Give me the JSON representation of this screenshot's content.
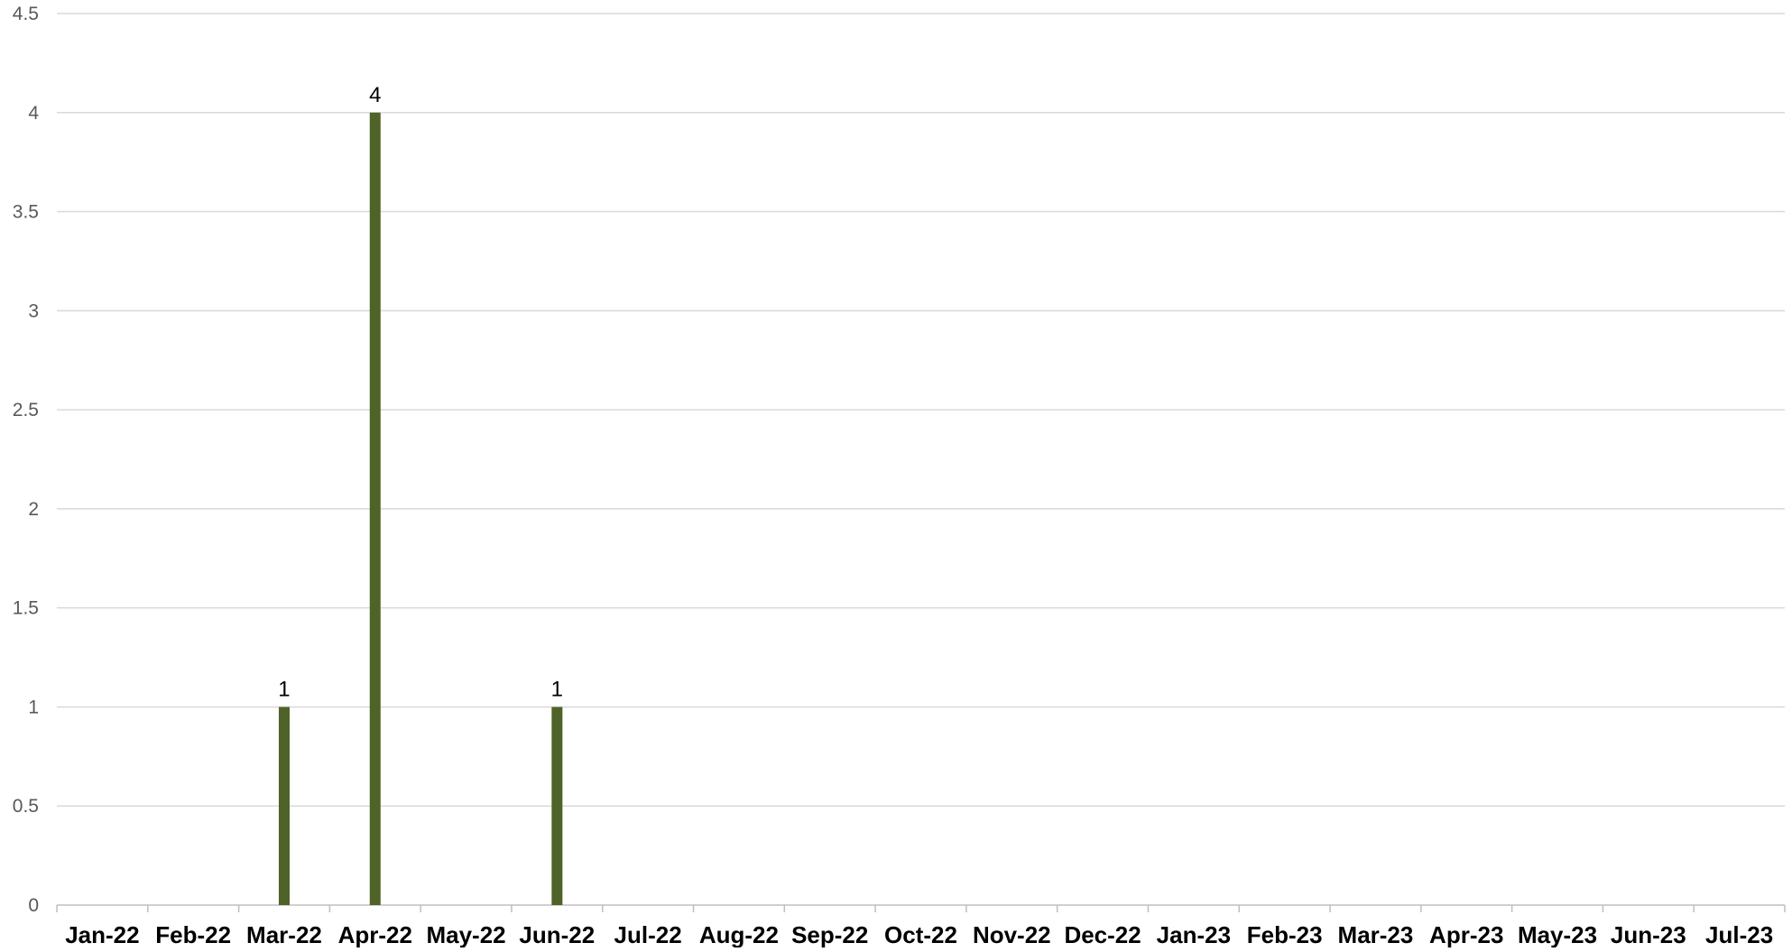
{
  "chart_data": {
    "type": "bar",
    "categories": [
      "Jan-22",
      "Feb-22",
      "Mar-22",
      "Apr-22",
      "May-22",
      "Jun-22",
      "Jul-22",
      "Aug-22",
      "Sep-22",
      "Oct-22",
      "Nov-22",
      "Dec-22",
      "Jan-23",
      "Feb-23",
      "Mar-23",
      "Apr-23",
      "May-23",
      "Jun-23",
      "Jul-23"
    ],
    "values": [
      0,
      0,
      1,
      4,
      0,
      1,
      0,
      0,
      0,
      0,
      0,
      0,
      0,
      0,
      0,
      0,
      0,
      0,
      0
    ],
    "data_labels": [
      "",
      "",
      "1",
      "4",
      "",
      "1",
      "",
      "",
      "",
      "",
      "",
      "",
      "",
      "",
      "",
      "",
      "",
      "",
      ""
    ],
    "y_ticks": [
      "0",
      "0.5",
      "1",
      "1.5",
      "2",
      "2.5",
      "3",
      "3.5",
      "4",
      "4.5"
    ],
    "y_tick_values": [
      0,
      0.5,
      1,
      1.5,
      2,
      2.5,
      3,
      3.5,
      4,
      4.5
    ],
    "ylim": [
      0,
      4.5
    ],
    "title": "",
    "xlabel": "",
    "ylabel": "",
    "grid": true,
    "legend": "none",
    "colors": {
      "bar": "#4f6228",
      "grid": "#d9d9d9",
      "axis": "#bfbfbf",
      "tick_label": "#595959",
      "category_label": "#000000",
      "data_label": "#000000"
    }
  }
}
